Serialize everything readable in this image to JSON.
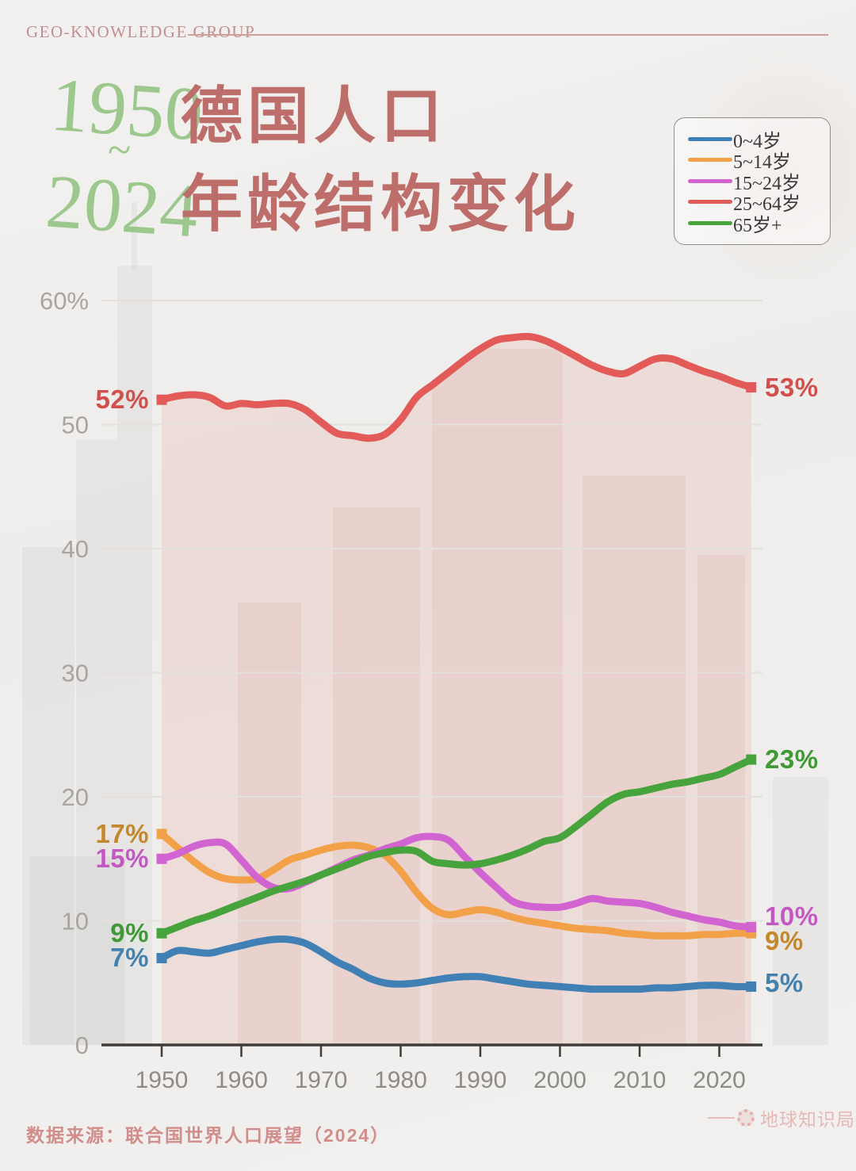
{
  "header": {
    "brand": "GEO-KNOWLEDGE GROUP"
  },
  "title": {
    "year_from": "1950",
    "tilde": "~",
    "year_to": "2024",
    "line1": "德国人口",
    "line2": "年龄结构变化"
  },
  "footer": {
    "source": "数据来源：联合国世界人口展望（2024）",
    "logo_text": "地球知识局",
    "logo_icon": "globe-ring-icon"
  },
  "colors": {
    "paper": "#f0efed",
    "title_green": "#9cc88e",
    "title_rose": "#bd6e6a",
    "axis": "#3f3c39",
    "gridline": "#e4e1dd",
    "y_tick_text": "#a8a5a0",
    "x_tick_text": "#8e8b86",
    "area_fill_pink": "#e28a7e",
    "source_text": "#d18d8a"
  },
  "chart_data": {
    "type": "line",
    "title": "德国人口年龄结构变化",
    "subtitle": "1950~2024",
    "grid": true,
    "legend_position": "top-right",
    "ylim": [
      0,
      62
    ],
    "yticks": [
      {
        "value": 0,
        "label": "0"
      },
      {
        "value": 10,
        "label": "10"
      },
      {
        "value": 20,
        "label": "20"
      },
      {
        "value": 30,
        "label": "30"
      },
      {
        "value": 40,
        "label": "40"
      },
      {
        "value": 50,
        "label": "50"
      },
      {
        "value": 60,
        "label": "60%"
      }
    ],
    "xticks": [
      1950,
      1960,
      1970,
      1980,
      1990,
      2000,
      2010,
      2020
    ],
    "x": [
      1950,
      1952,
      1954,
      1956,
      1958,
      1960,
      1962,
      1964,
      1966,
      1968,
      1970,
      1972,
      1974,
      1976,
      1978,
      1980,
      1982,
      1984,
      1986,
      1988,
      1990,
      1992,
      1994,
      1996,
      1998,
      2000,
      2002,
      2004,
      2006,
      2008,
      2010,
      2012,
      2014,
      2016,
      2018,
      2020,
      2022,
      2024
    ],
    "series": [
      {
        "name": "0~4岁",
        "color": "#4080b5",
        "label_color": "#4381ae",
        "start_label": "7%",
        "end_label": "5%",
        "end_label_value": 5,
        "values": [
          7.0,
          7.6,
          7.5,
          7.4,
          7.7,
          8.0,
          8.3,
          8.5,
          8.5,
          8.2,
          7.5,
          6.7,
          6.1,
          5.4,
          5.0,
          4.9,
          5.0,
          5.2,
          5.4,
          5.5,
          5.5,
          5.3,
          5.1,
          4.9,
          4.8,
          4.7,
          4.6,
          4.5,
          4.5,
          4.5,
          4.5,
          4.6,
          4.6,
          4.7,
          4.8,
          4.8,
          4.7,
          4.7
        ]
      },
      {
        "name": "5~14岁",
        "color": "#f2a149",
        "label_color": "#c4882c",
        "start_label": "17%",
        "end_label": "9%",
        "end_label_value": 9,
        "values": [
          17.0,
          15.9,
          14.8,
          13.9,
          13.4,
          13.3,
          13.4,
          14.1,
          14.9,
          15.3,
          15.7,
          16.0,
          16.1,
          15.9,
          15.3,
          14.0,
          12.3,
          11.0,
          10.5,
          10.7,
          10.9,
          10.7,
          10.3,
          10.0,
          9.8,
          9.6,
          9.4,
          9.3,
          9.2,
          9.0,
          8.9,
          8.8,
          8.8,
          8.8,
          8.9,
          8.9,
          9.0,
          9.0
        ]
      },
      {
        "name": "15~24岁",
        "color": "#d264d2",
        "label_color": "#c358c3",
        "start_label": "15%",
        "end_label": "10%",
        "end_label_value": 10,
        "values": [
          15.0,
          15.4,
          16.0,
          16.3,
          16.2,
          14.9,
          13.5,
          12.7,
          12.6,
          13.1,
          13.7,
          14.3,
          14.9,
          15.3,
          15.8,
          16.2,
          16.7,
          16.8,
          16.5,
          15.2,
          13.9,
          12.7,
          11.6,
          11.2,
          11.1,
          11.1,
          11.4,
          11.8,
          11.6,
          11.5,
          11.4,
          11.1,
          10.7,
          10.4,
          10.1,
          9.9,
          9.6,
          9.5
        ]
      },
      {
        "name": "25~64岁",
        "color": "#e25b58",
        "label_color": "#d14f4d",
        "start_label": "52%",
        "end_label": "53%",
        "end_label_value": 53,
        "area_fill": true,
        "values": [
          52.0,
          52.3,
          52.4,
          52.2,
          51.5,
          51.7,
          51.6,
          51.7,
          51.7,
          51.2,
          50.2,
          49.3,
          49.1,
          48.9,
          49.2,
          50.4,
          52.2,
          53.2,
          54.2,
          55.2,
          56.1,
          56.8,
          57.0,
          57.1,
          56.8,
          56.2,
          55.5,
          54.8,
          54.3,
          54.1,
          54.7,
          55.3,
          55.3,
          54.8,
          54.3,
          53.9,
          53.4,
          53.0
        ]
      },
      {
        "name": "65岁+",
        "color": "#47a33c",
        "label_color": "#3f9a36",
        "start_label": "9%",
        "end_label": "23%",
        "end_label_value": 23,
        "values": [
          9.0,
          9.5,
          10.0,
          10.4,
          10.9,
          11.4,
          11.9,
          12.4,
          12.8,
          13.2,
          13.7,
          14.2,
          14.7,
          15.2,
          15.5,
          15.7,
          15.6,
          14.8,
          14.6,
          14.5,
          14.6,
          14.9,
          15.3,
          15.8,
          16.4,
          16.7,
          17.6,
          18.6,
          19.6,
          20.2,
          20.4,
          20.7,
          21.0,
          21.2,
          21.5,
          21.8,
          22.4,
          23.0
        ]
      }
    ]
  }
}
